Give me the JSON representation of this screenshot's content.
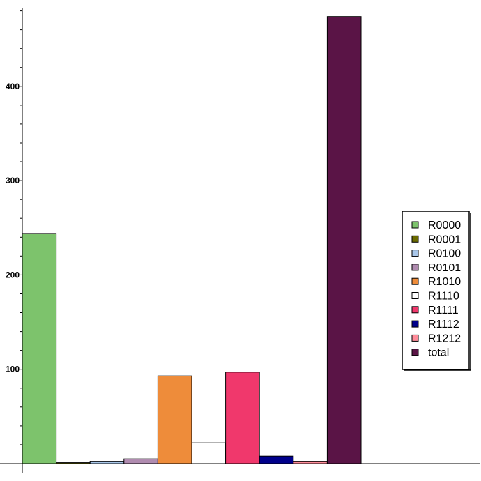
{
  "chart_data": {
    "type": "bar",
    "categories": [
      "R0000",
      "R0001",
      "R0100",
      "R0101",
      "R1010",
      "R1110",
      "R1111",
      "R1112",
      "R1212",
      "total"
    ],
    "values": [
      244,
      1,
      2,
      5,
      93,
      22,
      97,
      8,
      2,
      474
    ],
    "colors": [
      "#7dc36c",
      "#6b6b00",
      "#a9c7ea",
      "#b08cb0",
      "#ee8c3a",
      "#ffffff",
      "#f0386c",
      "#00008b",
      "#ff8c9a",
      "#5a1446"
    ],
    "title": "",
    "xlabel": "",
    "ylabel": "",
    "ylim": [
      0,
      480
    ],
    "yticks": [
      100,
      200,
      300,
      400
    ],
    "ytick_labels": [
      "100",
      "200",
      "300",
      "400"
    ],
    "grid": false,
    "legend_position": "right"
  }
}
